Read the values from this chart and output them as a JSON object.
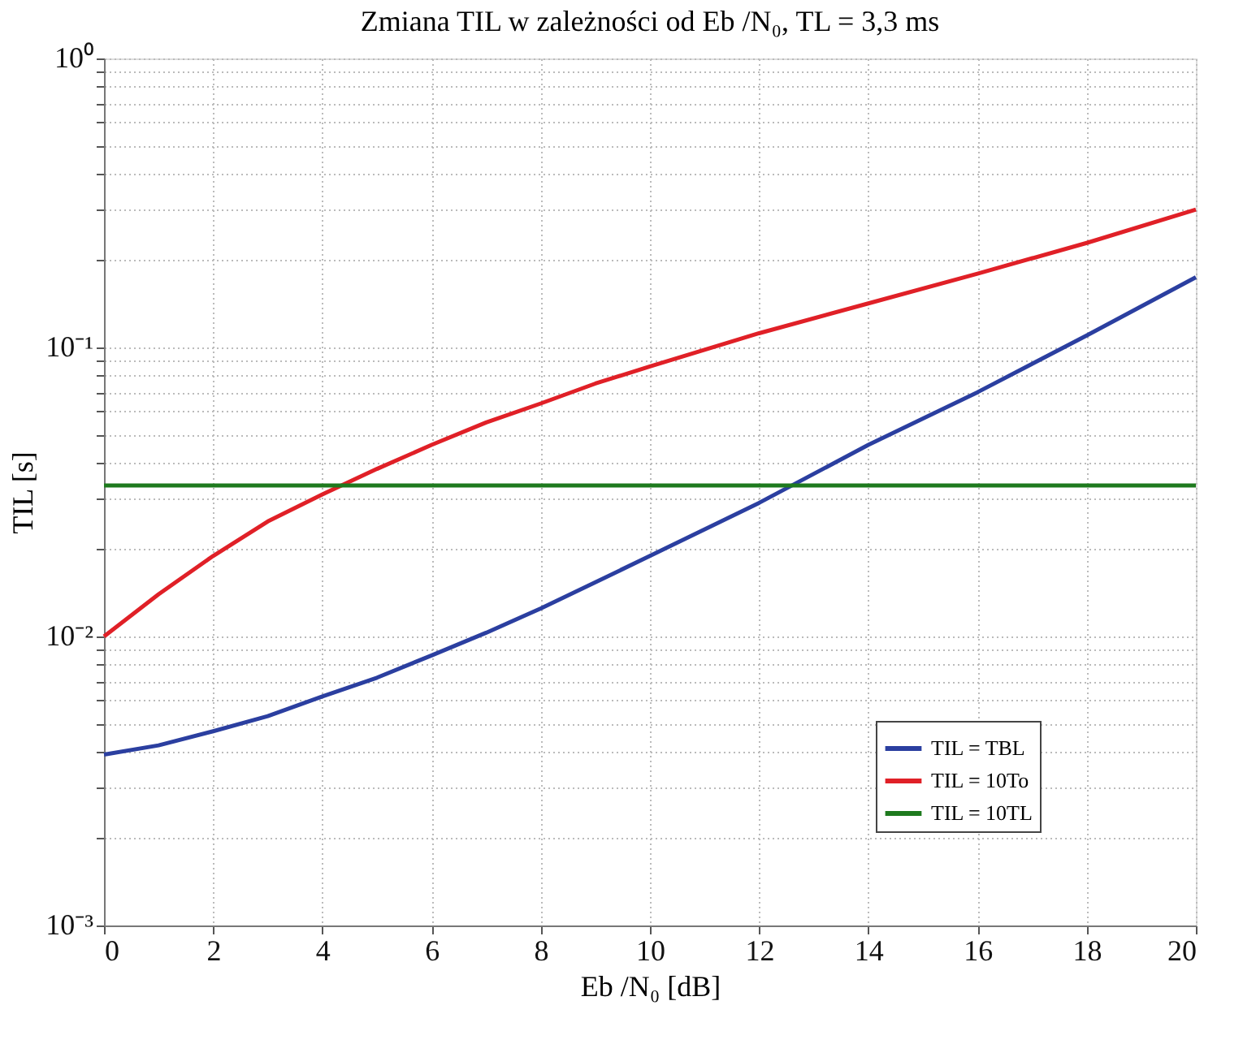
{
  "chart_data": {
    "type": "line",
    "title": "Zmiana TIL w zależności od Eb /N₀, TL = 3,3 ms",
    "xlabel": "Eb /N₀ [dB]",
    "ylabel": "TIL [s]",
    "x": [
      0,
      1,
      2,
      3,
      4,
      5,
      6,
      7,
      8,
      9,
      10,
      12,
      14,
      16,
      18,
      20
    ],
    "series": [
      {
        "name": "TIL = TBL",
        "color": "#2b3fa0",
        "values": [
          0.0039,
          0.0042,
          0.0047,
          0.0053,
          0.0062,
          0.0072,
          0.0086,
          0.0103,
          0.0125,
          0.0154,
          0.019,
          0.029,
          0.046,
          0.07,
          0.11,
          0.175
        ]
      },
      {
        "name": "TIL = 10To",
        "color": "#e02027",
        "values": [
          0.01,
          0.014,
          0.019,
          0.025,
          0.031,
          0.038,
          0.046,
          0.055,
          0.064,
          0.075,
          0.086,
          0.112,
          0.142,
          0.18,
          0.23,
          0.3
        ]
      },
      {
        "name": "TIL = 10TL",
        "color": "#1e7a1e",
        "values": [
          0.0333,
          0.0333,
          0.0333,
          0.0333,
          0.0333,
          0.0333,
          0.0333,
          0.0333,
          0.0333,
          0.0333,
          0.0333,
          0.0333,
          0.0333,
          0.0333,
          0.0333,
          0.0333
        ]
      }
    ],
    "xlim": [
      0,
      20
    ],
    "xticks": [
      0,
      2,
      4,
      6,
      8,
      10,
      12,
      14,
      16,
      18,
      20
    ],
    "ylim": [
      0.001,
      1
    ],
    "log": true,
    "yticks": [
      {
        "value": 0.001,
        "label": "10⁻³"
      },
      {
        "value": 0.002,
        "label": null
      },
      {
        "value": 0.003,
        "label": null
      },
      {
        "value": 0.004,
        "label": null
      },
      {
        "value": 0.005,
        "label": null
      },
      {
        "value": 0.006,
        "label": null
      },
      {
        "value": 0.007,
        "label": null
      },
      {
        "value": 0.008,
        "label": null
      },
      {
        "value": 0.009,
        "label": null
      },
      {
        "value": 0.01,
        "label": "10⁻²"
      },
      {
        "value": 0.02,
        "label": null
      },
      {
        "value": 0.03,
        "label": null
      },
      {
        "value": 0.04,
        "label": null
      },
      {
        "value": 0.05,
        "label": null
      },
      {
        "value": 0.06,
        "label": null
      },
      {
        "value": 0.07,
        "label": null
      },
      {
        "value": 0.08,
        "label": null
      },
      {
        "value": 0.09,
        "label": null
      },
      {
        "value": 0.1,
        "label": "10⁻¹"
      },
      {
        "value": 0.2,
        "label": null
      },
      {
        "value": 0.3,
        "label": null
      },
      {
        "value": 0.4,
        "label": null
      },
      {
        "value": 0.5,
        "label": null
      },
      {
        "value": 0.6,
        "label": null
      },
      {
        "value": 0.7,
        "label": null
      },
      {
        "value": 0.8,
        "label": null
      },
      {
        "value": 0.9,
        "label": null
      },
      {
        "value": 1,
        "label": "10⁰"
      }
    ],
    "grid": true,
    "legend": "bottom right",
    "marker": "none",
    "line_style": "solid"
  }
}
